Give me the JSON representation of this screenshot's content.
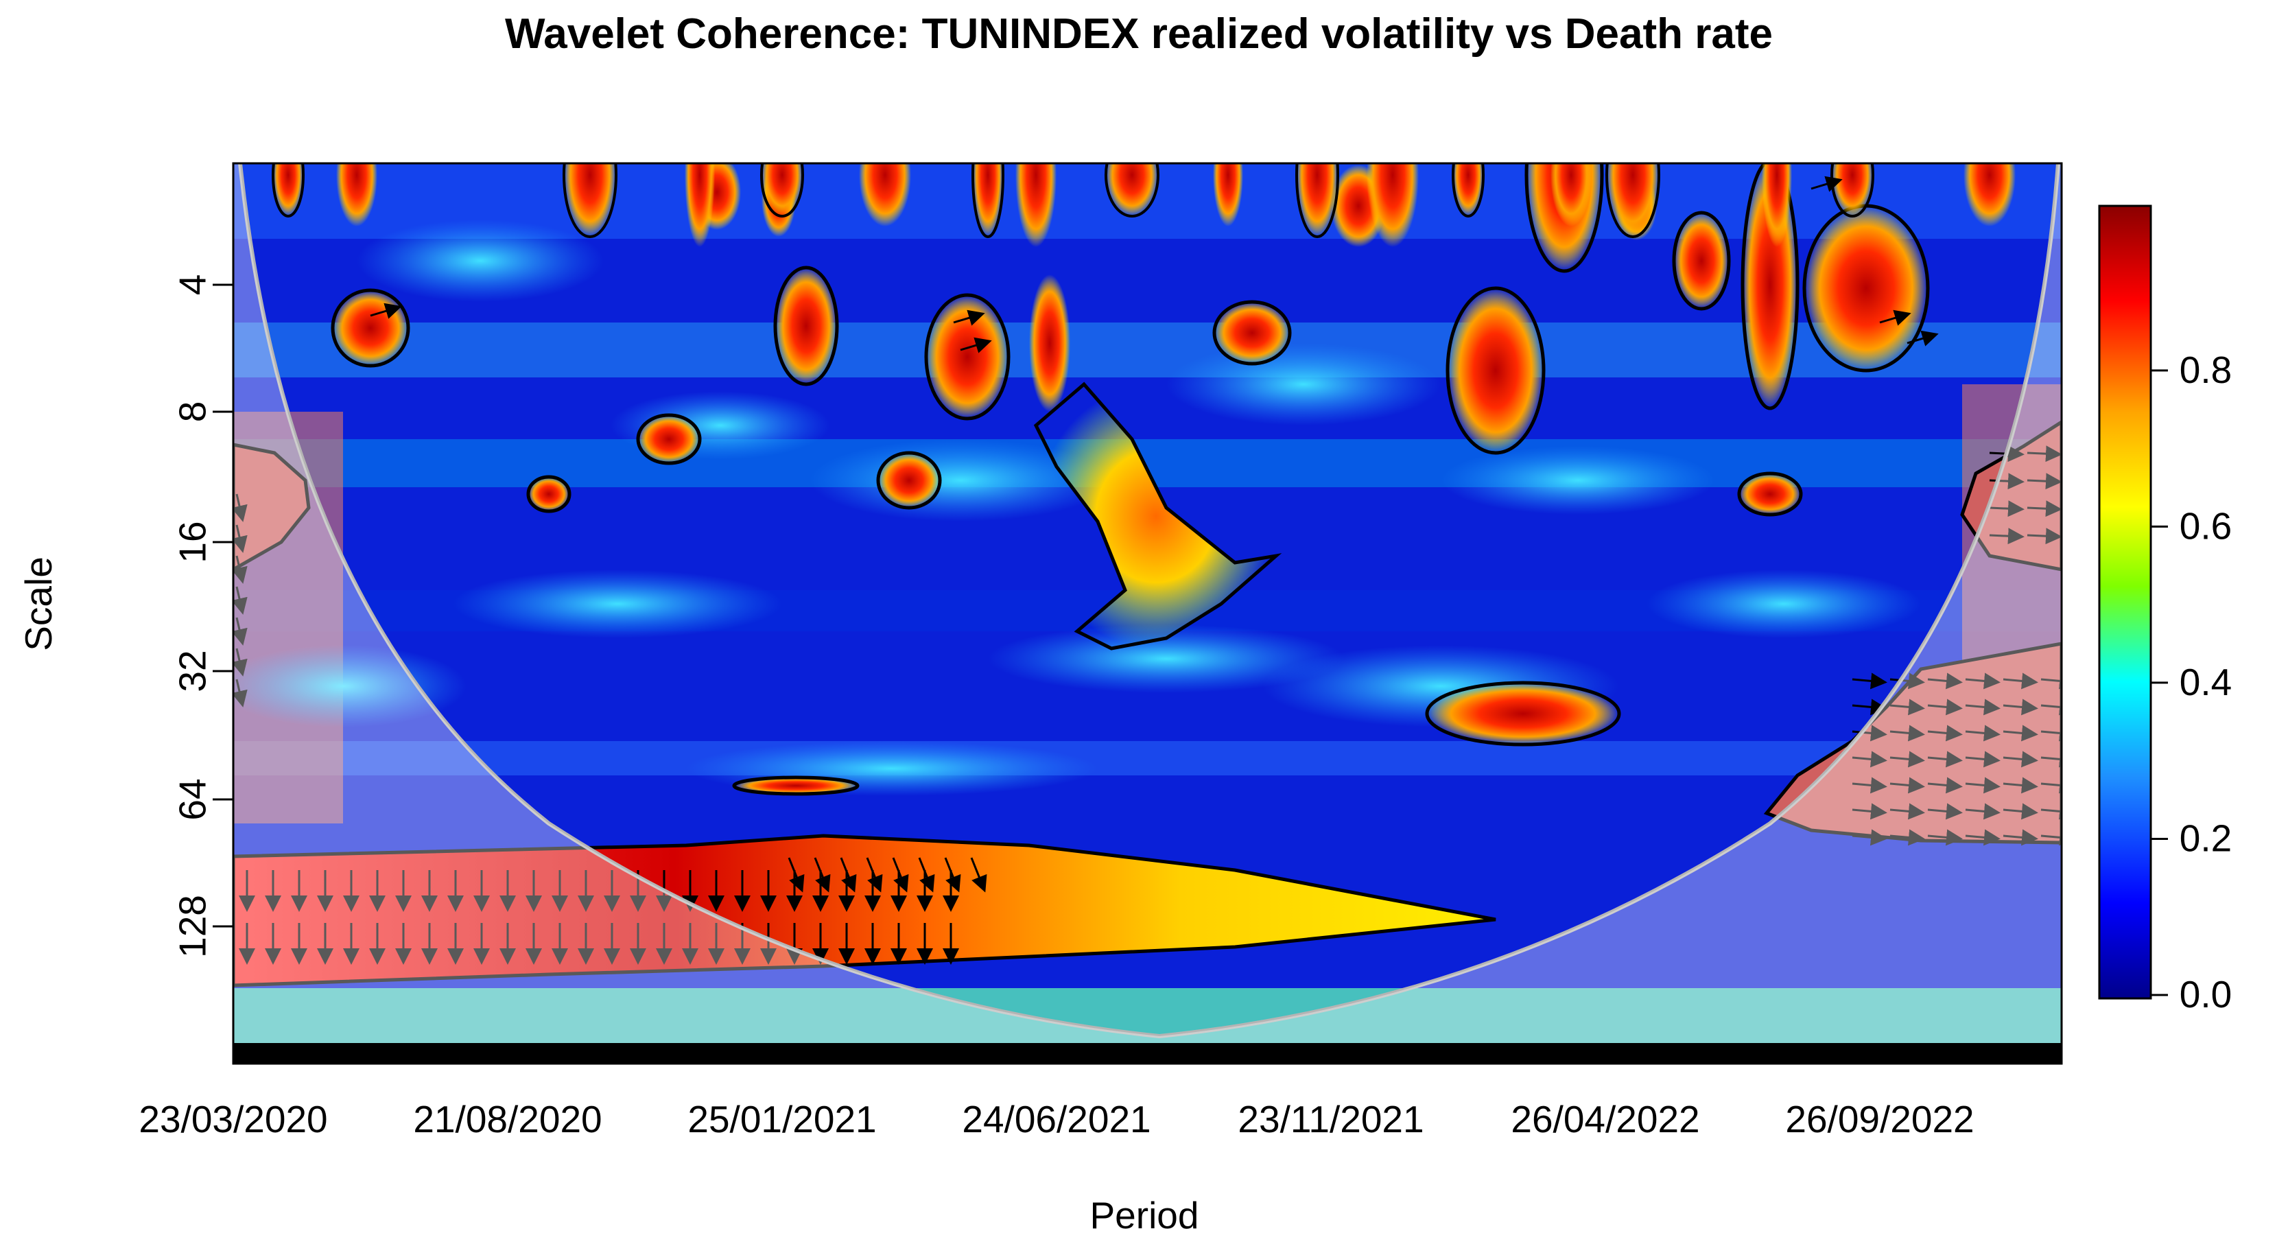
{
  "chart_data": {
    "type": "heatmap",
    "title": "Wavelet Coherence: TUNINDEX realized volatility vs Death rate",
    "xlabel": "Period",
    "ylabel": "Scale",
    "x_ticks": [
      "23/03/2020",
      "21/08/2020",
      "25/01/2021",
      "24/06/2021",
      "23/11/2021",
      "26/04/2022",
      "26/09/2022"
    ],
    "y_ticks": [
      "4",
      "8",
      "16",
      "32",
      "64",
      "128"
    ],
    "y_scale": "log2",
    "y_range": [
      2,
      256
    ],
    "colorbar": {
      "ticks": [
        "0.0",
        "0.2",
        "0.4",
        "0.6",
        "0.8"
      ],
      "range": [
        0,
        1
      ],
      "colors": [
        "#00008b",
        "#0000ff",
        "#1e90ff",
        "#00ffff",
        "#7fff00",
        "#ffff00",
        "#ffa500",
        "#ff0000",
        "#8b0000"
      ]
    },
    "features": {
      "cone_of_influence": true,
      "significance_contours": true,
      "phase_arrows": true,
      "high_coherence_band_scale": 128,
      "coi_color": "#b4b4b4"
    }
  }
}
